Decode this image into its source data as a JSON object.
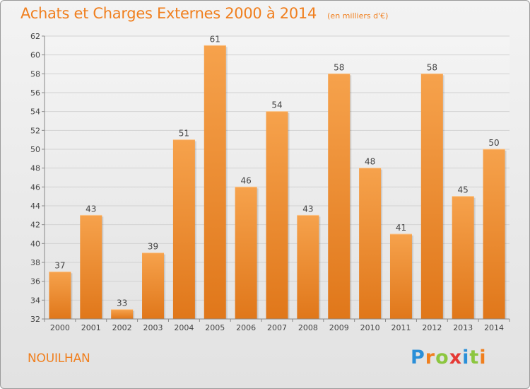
{
  "chart_data": {
    "type": "bar",
    "title": "Achats et Charges Externes 2000 à 2014",
    "subtitle": "(en milliers d'€)",
    "xlabel": "",
    "ylabel": "",
    "categories": [
      "2000",
      "2001",
      "2002",
      "2003",
      "2004",
      "2005",
      "2006",
      "2007",
      "2008",
      "2009",
      "2010",
      "2011",
      "2012",
      "2013",
      "2014"
    ],
    "values": [
      37,
      43,
      33,
      39,
      51,
      61,
      46,
      54,
      43,
      58,
      48,
      41,
      58,
      45,
      50
    ],
    "ylim": [
      32,
      62
    ],
    "yticks": [
      32,
      34,
      36,
      38,
      40,
      42,
      44,
      46,
      48,
      50,
      52,
      54,
      56,
      58,
      60,
      62
    ],
    "grid": true,
    "bar_color": "#f29a3f",
    "data_labels": true
  },
  "commune": "NOUILHAN",
  "logo": {
    "letters": [
      "P",
      "r",
      "o",
      "x",
      "i",
      "t",
      "i"
    ],
    "colors": [
      "#2a8fd8",
      "#f07f1e",
      "#8cc63f",
      "#e53935",
      "#2a8fd8",
      "#8cc63f",
      "#f07f1e"
    ]
  }
}
